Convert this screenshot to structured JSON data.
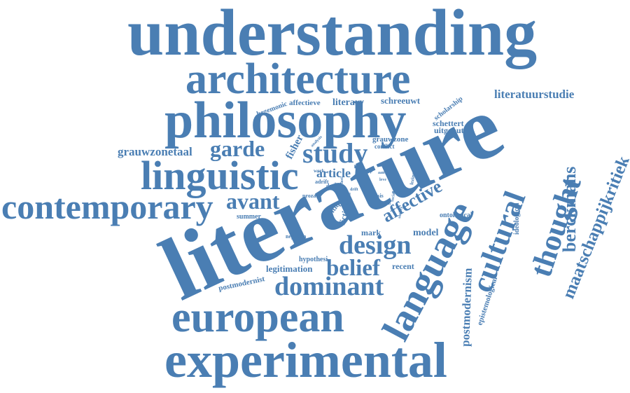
{
  "colors": {
    "word": "#4a7eb3",
    "background": "#ffffff"
  },
  "words": [
    {
      "id": "w-understanding",
      "text": "understanding"
    },
    {
      "id": "w-architecture",
      "text": "architecture"
    },
    {
      "id": "w-philosophy",
      "text": "philosophy"
    },
    {
      "id": "w-literatuurstudie",
      "text": "literatuurstudie"
    },
    {
      "id": "w-literature",
      "text": "literature"
    },
    {
      "id": "w-linguistic",
      "text": "linguistic"
    },
    {
      "id": "w-contemporary",
      "text": "contemporary"
    },
    {
      "id": "w-garde",
      "text": "garde"
    },
    {
      "id": "w-study",
      "text": "study"
    },
    {
      "id": "w-avant",
      "text": "avant"
    },
    {
      "id": "w-grauwzonetaal",
      "text": "grauwzonetaal"
    },
    {
      "id": "w-language",
      "text": "language"
    },
    {
      "id": "w-cultural",
      "text": "cultural"
    },
    {
      "id": "w-thought",
      "text": "thought"
    },
    {
      "id": "w-berckmans",
      "text": "berckmans"
    },
    {
      "id": "w-maatschappijkritiek",
      "text": "maatschappijkritiek"
    },
    {
      "id": "w-design",
      "text": "design"
    },
    {
      "id": "w-belief",
      "text": "belief"
    },
    {
      "id": "w-dominant",
      "text": "dominant"
    },
    {
      "id": "w-european",
      "text": "european"
    },
    {
      "id": "w-experimental",
      "text": "experimental"
    },
    {
      "id": "w-affective",
      "text": "affective"
    },
    {
      "id": "w-postmodernism",
      "text": "postmodernism"
    },
    {
      "id": "w-epistemological",
      "text": "epistemological"
    },
    {
      "id": "w-ideological",
      "text": "ideological"
    },
    {
      "id": "w-hegemonic",
      "text": "hegemonic"
    },
    {
      "id": "w-affectieve",
      "text": "affectieve"
    },
    {
      "id": "w-literary",
      "text": "literary"
    },
    {
      "id": "w-schreeuwt",
      "text": "schreeuwt"
    },
    {
      "id": "w-scholarship",
      "text": "scholarship"
    },
    {
      "id": "w-schettert",
      "text": "schettert"
    },
    {
      "id": "w-uitgeput",
      "text": "uitgeput"
    },
    {
      "id": "w-grauwzone",
      "text": "grauwzone"
    },
    {
      "id": "w-conflict",
      "text": "conflict"
    },
    {
      "id": "w-fisher",
      "text": "fisher"
    },
    {
      "id": "w-article",
      "text": "article"
    },
    {
      "id": "w-analysis",
      "text": "analysis"
    },
    {
      "id": "w-work",
      "text": "work"
    },
    {
      "id": "w-adrift",
      "text": "adrift"
    },
    {
      "id": "w-dutch",
      "text": "dutch"
    },
    {
      "id": "w-proza",
      "text": "proza"
    },
    {
      "id": "w-critique",
      "text": "critique"
    },
    {
      "id": "w-fiction",
      "text": "fiction"
    },
    {
      "id": "w-reality",
      "text": "reality"
    },
    {
      "id": "w-crisis",
      "text": "crisis"
    },
    {
      "id": "w-lezing",
      "text": "lezing"
    },
    {
      "id": "w-ontological",
      "text": "ontological"
    },
    {
      "id": "w-summer",
      "text": "summer"
    },
    {
      "id": "w-negation",
      "text": "negation"
    },
    {
      "id": "w-mark",
      "text": "mark"
    },
    {
      "id": "w-model",
      "text": "model"
    },
    {
      "id": "w-hypothesi",
      "text": "hypothesi"
    },
    {
      "id": "w-legitimation",
      "text": "legitimation"
    },
    {
      "id": "w-recent",
      "text": "recent"
    },
    {
      "id": "w-postmodernist",
      "text": "postmodernist"
    },
    {
      "id": "w-critical",
      "text": "critical"
    },
    {
      "id": "w-social",
      "text": "social"
    },
    {
      "id": "w-society",
      "text": "society"
    },
    {
      "id": "w-text",
      "text": "text"
    },
    {
      "id": "w-lost",
      "text": "lost"
    },
    {
      "id": "w-leve",
      "text": "leve"
    },
    {
      "id": "w-aan",
      "text": "aan"
    },
    {
      "id": "w-roman",
      "text": "roman"
    },
    {
      "id": "w-drift",
      "text": "drift"
    },
    {
      "id": "w-model2",
      "text": "model"
    },
    {
      "id": "w-keep",
      "text": "keep"
    }
  ]
}
